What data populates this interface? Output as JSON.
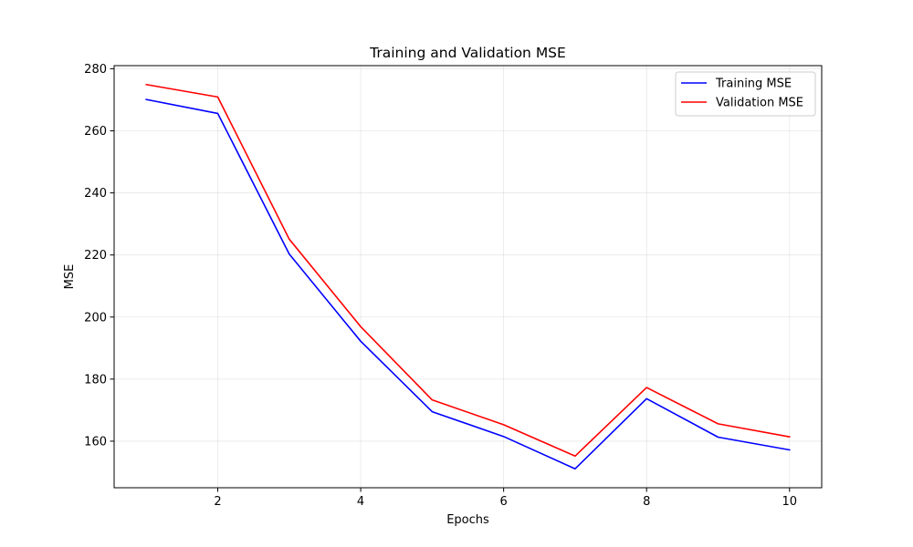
{
  "chart_data": {
    "type": "line",
    "title": "Training and Validation MSE",
    "xlabel": "Epochs",
    "ylabel": "MSE",
    "xlim": [
      0.55,
      10.45
    ],
    "ylim": [
      145,
      281
    ],
    "xticks": [
      2,
      4,
      6,
      8,
      10
    ],
    "yticks": [
      160,
      180,
      200,
      220,
      240,
      260,
      280
    ],
    "grid": true,
    "legend_position": "top-right",
    "x": [
      1,
      2,
      3,
      4,
      5,
      6,
      7,
      8,
      9,
      10
    ],
    "series": [
      {
        "name": "Training MSE",
        "color": "#0000ff",
        "values": [
          270.1,
          265.6,
          220.3,
          192.2,
          169.5,
          161.5,
          151.1,
          173.7,
          161.3,
          157.2
        ]
      },
      {
        "name": "Validation MSE",
        "color": "#ff0000",
        "values": [
          274.9,
          270.9,
          225.1,
          196.9,
          173.3,
          165.3,
          155.2,
          177.3,
          165.6,
          161.4
        ]
      }
    ]
  }
}
